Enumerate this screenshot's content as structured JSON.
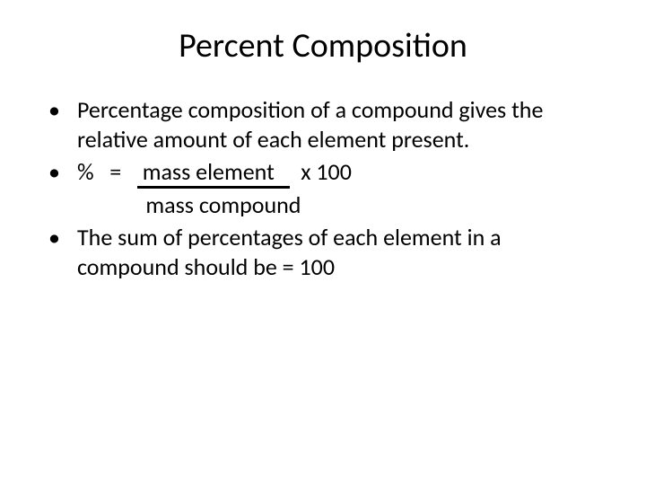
{
  "slide": {
    "title": "Percent Composition",
    "bullets": {
      "b1": "Percentage composition of a compound gives the relative amount of each element present.",
      "b2_prefix": "%   =   ",
      "b2_numerator": " mass element   ",
      "b2_suffix": "  x 100",
      "b2_denominator": "             mass compound",
      "b3": "The sum of percentages of each element in a compound should be = 100"
    },
    "colors": {
      "background": "#ffffff",
      "text": "#000000"
    },
    "fonts": {
      "title_size": 38,
      "body_size": 26,
      "family": "Calibri"
    }
  }
}
